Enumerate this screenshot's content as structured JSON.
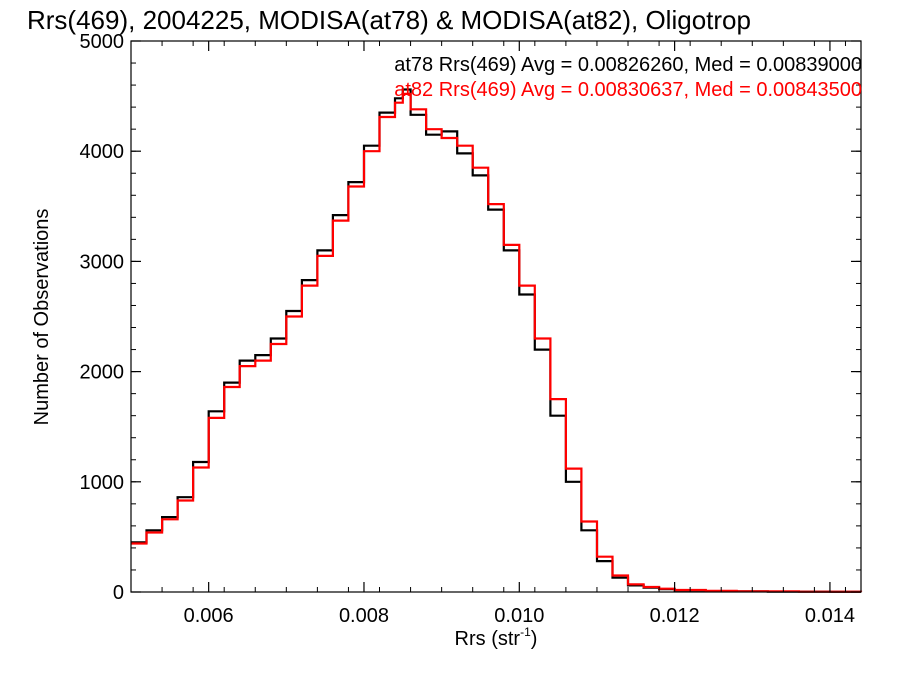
{
  "chart_data": {
    "type": "line",
    "step": true,
    "title": "Rrs(469), 2004225, MODISA(at78) & MODISA(at82), Oligotrop",
    "xlabel": "Rrs (str",
    "xlabel_sup": "-1",
    "xlabel_close": ")",
    "ylabel": "Number of Observations",
    "xlim": [
      0.005,
      0.0144
    ],
    "ylim": [
      0,
      5000
    ],
    "x_ticks": [
      {
        "value": 0.006,
        "label": "0.006"
      },
      {
        "value": 0.008,
        "label": "0.008"
      },
      {
        "value": 0.01,
        "label": "0.010"
      },
      {
        "value": 0.012,
        "label": "0.012"
      },
      {
        "value": 0.014,
        "label": "0.014"
      }
    ],
    "x_minor_step": 0.0004,
    "y_ticks": [
      {
        "value": 0,
        "label": "0"
      },
      {
        "value": 1000,
        "label": "1000"
      },
      {
        "value": 2000,
        "label": "2000"
      },
      {
        "value": 3000,
        "label": "3000"
      },
      {
        "value": 4000,
        "label": "4000"
      },
      {
        "value": 5000,
        "label": "5000"
      }
    ],
    "y_minor_step": 200,
    "grid": false,
    "legend_position": "top-right",
    "series": [
      {
        "name": "at78 Rrs(469) Avg = 0.00826260, Med = 0.00839000",
        "color": "#000000",
        "x": [
          0.005,
          0.0052,
          0.0054,
          0.0056,
          0.0058,
          0.006,
          0.0062,
          0.0064,
          0.0066,
          0.0068,
          0.007,
          0.0072,
          0.0074,
          0.0076,
          0.0078,
          0.008,
          0.0082,
          0.0084,
          0.0085,
          0.0086,
          0.0088,
          0.009,
          0.0092,
          0.0094,
          0.0096,
          0.0098,
          0.01,
          0.0102,
          0.0104,
          0.0106,
          0.0108,
          0.011,
          0.0112,
          0.0114,
          0.0116,
          0.0118,
          0.012,
          0.0124,
          0.0128,
          0.0132,
          0.0136,
          0.014,
          0.0144
        ],
        "y": [
          450,
          560,
          680,
          860,
          1180,
          1640,
          1900,
          2100,
          2150,
          2300,
          2550,
          2830,
          3100,
          3420,
          3720,
          4050,
          4350,
          4480,
          4560,
          4330,
          4150,
          4180,
          3980,
          3780,
          3470,
          3100,
          2700,
          2200,
          1600,
          1000,
          560,
          280,
          130,
          60,
          40,
          25,
          15,
          8,
          5,
          4,
          3,
          2,
          2
        ]
      },
      {
        "name": "at82 Rrs(469) Avg = 0.00830637, Med = 0.00843500",
        "color": "#ff0000",
        "x": [
          0.005,
          0.0052,
          0.0054,
          0.0056,
          0.0058,
          0.006,
          0.0062,
          0.0064,
          0.0066,
          0.0068,
          0.007,
          0.0072,
          0.0074,
          0.0076,
          0.0078,
          0.008,
          0.0082,
          0.0084,
          0.0085,
          0.0086,
          0.0088,
          0.009,
          0.0092,
          0.0094,
          0.0096,
          0.0098,
          0.01,
          0.0102,
          0.0104,
          0.0106,
          0.0108,
          0.011,
          0.0112,
          0.0114,
          0.0116,
          0.0118,
          0.012,
          0.0124,
          0.0128,
          0.0132,
          0.0136,
          0.014,
          0.0144
        ],
        "y": [
          440,
          540,
          660,
          830,
          1130,
          1580,
          1860,
          2050,
          2100,
          2250,
          2500,
          2780,
          3050,
          3370,
          3680,
          4000,
          4310,
          4440,
          4520,
          4380,
          4200,
          4120,
          4050,
          3850,
          3520,
          3150,
          2780,
          2300,
          1750,
          1120,
          640,
          320,
          150,
          70,
          45,
          30,
          18,
          10,
          6,
          5,
          3,
          3,
          2
        ]
      }
    ]
  }
}
